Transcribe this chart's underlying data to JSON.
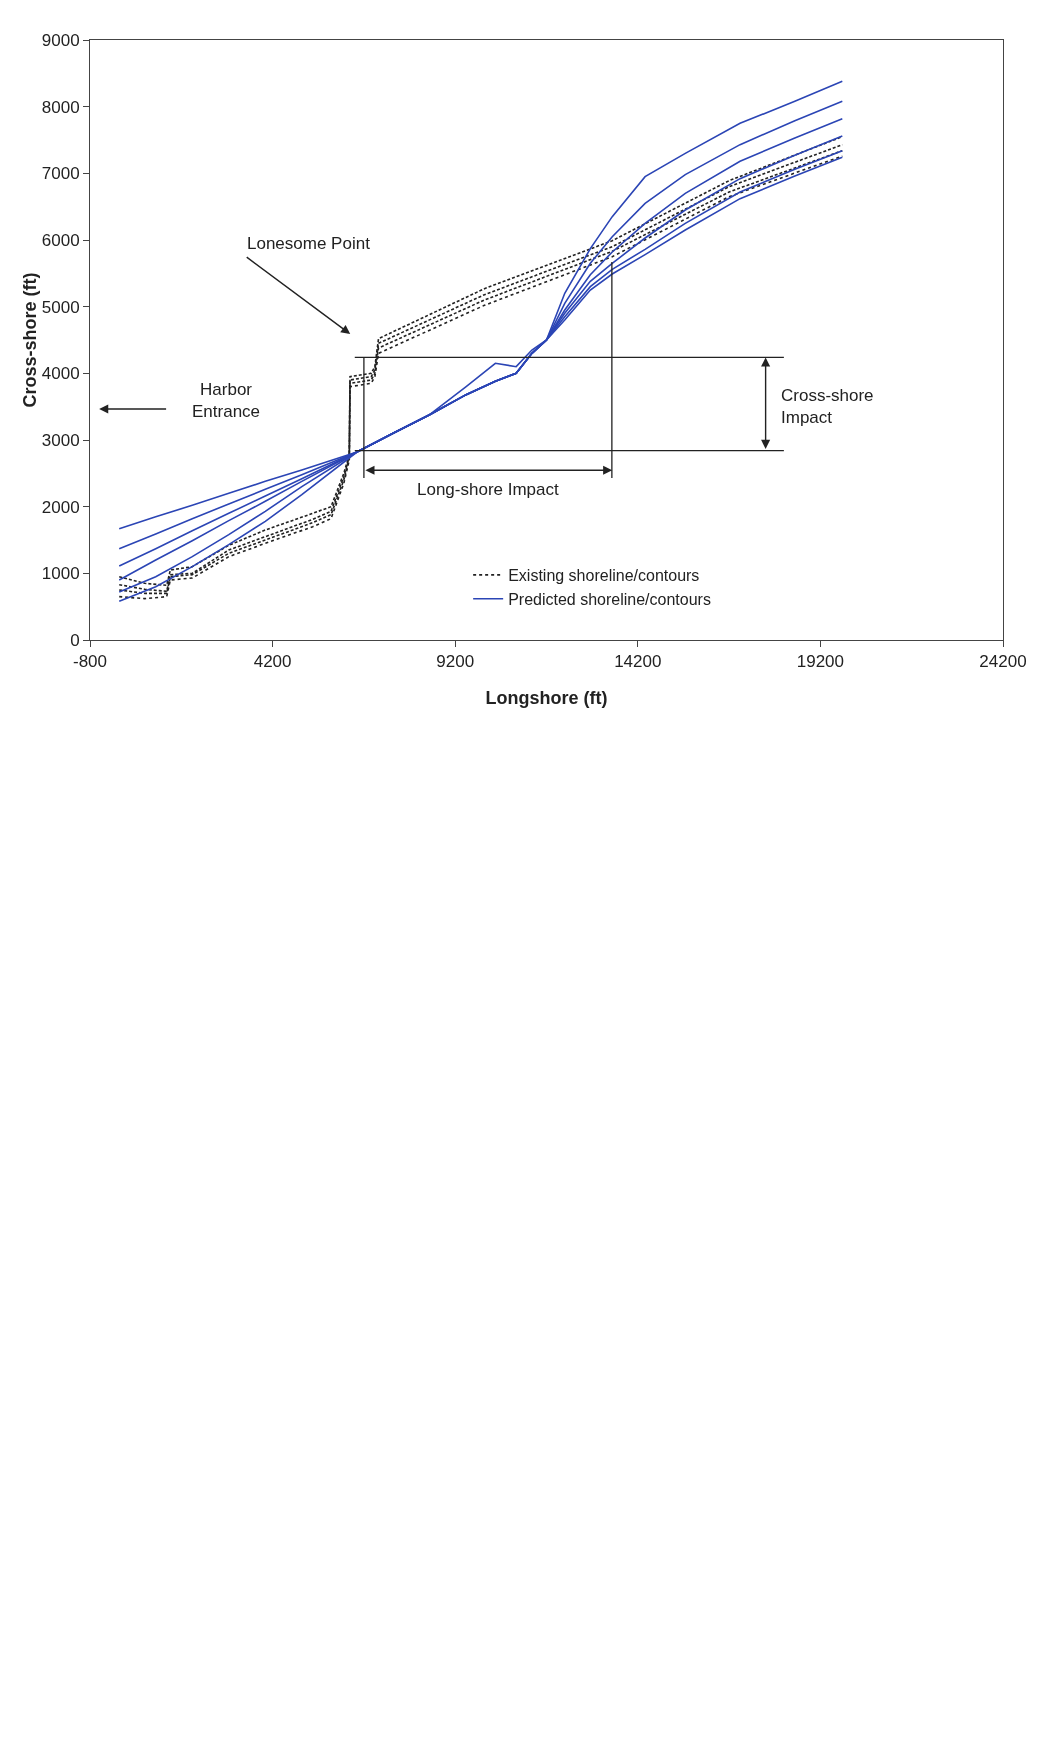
{
  "chart_data": {
    "type": "line",
    "xlabel": "Longshore (ft)",
    "ylabel": "Cross-shore (ft)",
    "xlim": [
      -800,
      24200
    ],
    "xticks": [
      -800,
      4200,
      9200,
      14200,
      19200,
      24200
    ],
    "ylim": [
      0,
      9000
    ],
    "yticks": [
      0,
      1000,
      2000,
      3000,
      4000,
      5000,
      6000,
      7000,
      8000,
      9000
    ],
    "grid": false,
    "legend": "bottom",
    "marker": "none",
    "series": [
      {
        "name": "Existing shoreline/contours",
        "color": "#222222",
        "line_style": "dotted",
        "x": [
          0,
          700,
          1300,
          1400,
          2000,
          3000,
          4000,
          5300,
          5800,
          6150,
          6300,
          6320,
          6900,
          7000,
          7100,
          10000,
          13500,
          16700,
          19800
        ],
        "values": [
          650,
          620,
          650,
          900,
          930,
          1250,
          1450,
          1700,
          1820,
          2350,
          2700,
          3800,
          3850,
          3950,
          4300,
          5020,
          5750,
          6650,
          7260
        ]
      },
      {
        "color": "#222222",
        "line_style": "dashed",
        "x": [
          0,
          700,
          1300,
          1400,
          2000,
          3000,
          4000,
          5300,
          5800,
          6150,
          6300,
          6320,
          6900,
          7000,
          7100,
          10000,
          13500,
          16700,
          19800
        ],
        "values": [
          750,
          700,
          700,
          950,
          980,
          1300,
          1500,
          1760,
          1880,
          2400,
          2730,
          3850,
          3900,
          4000,
          4380,
          5100,
          5830,
          6720,
          7340
        ]
      },
      {
        "color": "#222222",
        "line_style": "dashed",
        "x": [
          0,
          700,
          1300,
          1400,
          2000,
          3000,
          4000,
          5300,
          5800,
          6150,
          6300,
          6320,
          6900,
          7000,
          7100,
          10000,
          13500,
          16700,
          19800
        ],
        "values": [
          830,
          760,
          730,
          980,
          1000,
          1350,
          1550,
          1810,
          1930,
          2450,
          2750,
          3900,
          3950,
          4050,
          4450,
          5180,
          5900,
          6800,
          7430
        ]
      },
      {
        "color": "#222222",
        "line_style": "dashed",
        "x": [
          0,
          700,
          1300,
          1400,
          2000,
          3000,
          4000,
          5300,
          5800,
          6150,
          6300,
          6320,
          6900,
          7000,
          7100,
          10000,
          13500,
          16700,
          19800
        ],
        "values": [
          950,
          850,
          820,
          1050,
          1100,
          1420,
          1650,
          1900,
          2000,
          2500,
          2780,
          3950,
          4000,
          4100,
          4520,
          5270,
          5990,
          6890,
          7550
        ]
      },
      {
        "name": "Predicted shoreline/contours",
        "color": "#2b45b5",
        "line_style": "solid",
        "x": [
          0,
          1000,
          2000,
          3000,
          4000,
          5000,
          6510,
          7500,
          8500,
          9500,
          10300,
          10870,
          11300,
          11700,
          12200,
          12900,
          13500,
          14400,
          15500,
          17000,
          18500,
          19800
        ],
        "values": [
          1670,
          1850,
          2020,
          2200,
          2380,
          2550,
          2820,
          3100,
          3380,
          3680,
          3880,
          4000,
          4300,
          4500,
          5200,
          5870,
          6350,
          6950,
          7300,
          7750,
          8080,
          8380
        ]
      },
      {
        "color": "#2b45b5",
        "line_style": "solid",
        "x": [
          0,
          1000,
          2000,
          3000,
          4000,
          5000,
          6510,
          7500,
          8500,
          9500,
          10300,
          10870,
          11300,
          11700,
          12200,
          12900,
          13500,
          14400,
          15500,
          17000,
          18500,
          19800
        ],
        "values": [
          1370,
          1590,
          1820,
          2040,
          2260,
          2480,
          2820,
          3100,
          3380,
          3680,
          3880,
          4000,
          4300,
          4500,
          5050,
          5650,
          6050,
          6550,
          6980,
          7430,
          7790,
          8080
        ]
      },
      {
        "color": "#2b45b5",
        "line_style": "solid",
        "x": [
          0,
          1000,
          2000,
          3000,
          4000,
          5000,
          6510,
          7500,
          8500,
          9500,
          10300,
          10870,
          11300,
          11700,
          12200,
          12900,
          13500,
          14400,
          15500,
          17000,
          18500,
          19800
        ],
        "values": [
          1110,
          1370,
          1640,
          1900,
          2160,
          2420,
          2820,
          3100,
          3380,
          3800,
          4150,
          4100,
          4350,
          4500,
          4950,
          5480,
          5820,
          6250,
          6700,
          7180,
          7530,
          7820
        ]
      },
      {
        "color": "#2b45b5",
        "line_style": "solid",
        "x": [
          0,
          1000,
          2000,
          3000,
          4000,
          5000,
          6510,
          7500,
          8500,
          9500,
          10300,
          10870,
          11300,
          11700,
          12200,
          12900,
          13500,
          14400,
          15500,
          17000,
          18500,
          19800
        ],
        "values": [
          900,
          1200,
          1490,
          1790,
          2080,
          2380,
          2820,
          3100,
          3380,
          3680,
          3880,
          4000,
          4300,
          4500,
          4900,
          5380,
          5650,
          6030,
          6450,
          6920,
          7270,
          7560
        ]
      },
      {
        "color": "#2b45b5",
        "line_style": "solid",
        "x": [
          0,
          1000,
          2000,
          3000,
          4000,
          5000,
          6510,
          7500,
          8500,
          9500,
          10300,
          10870,
          11300,
          11700,
          12200,
          12900,
          13500,
          14400,
          15500,
          17000,
          18500,
          19800
        ],
        "values": [
          720,
          950,
          1250,
          1580,
          1930,
          2300,
          2820,
          3100,
          3380,
          3680,
          3880,
          4000,
          4300,
          4500,
          4850,
          5300,
          5560,
          5860,
          6250,
          6720,
          7060,
          7340
        ]
      },
      {
        "color": "#2b45b5",
        "line_style": "solid",
        "x": [
          0,
          1000,
          2000,
          3000,
          4000,
          5000,
          6510,
          7500,
          8500,
          9500,
          10300,
          10870,
          11300,
          11700,
          12200,
          12900,
          13500,
          14400,
          15500,
          17000,
          18500,
          19800
        ],
        "values": [
          580,
          800,
          1100,
          1430,
          1780,
          2180,
          2820,
          3100,
          3380,
          3680,
          3880,
          4000,
          4300,
          4500,
          4800,
          5250,
          5490,
          5780,
          6150,
          6620,
          6960,
          7240
        ]
      }
    ],
    "ref_lines": [
      {
        "axis": "y",
        "value": 2840,
        "color": "#222222"
      },
      {
        "axis": "y",
        "value": 4240,
        "color": "#222222"
      },
      {
        "axis": "x",
        "value": 6700,
        "color": "#222222"
      },
      {
        "axis": "x",
        "value": 13490,
        "color": "#222222"
      }
    ],
    "annotations": [
      "Lonesome Point",
      "Harbor\nEntrance",
      "Cross-shore\nImpact",
      "Long-shore Impact"
    ]
  }
}
